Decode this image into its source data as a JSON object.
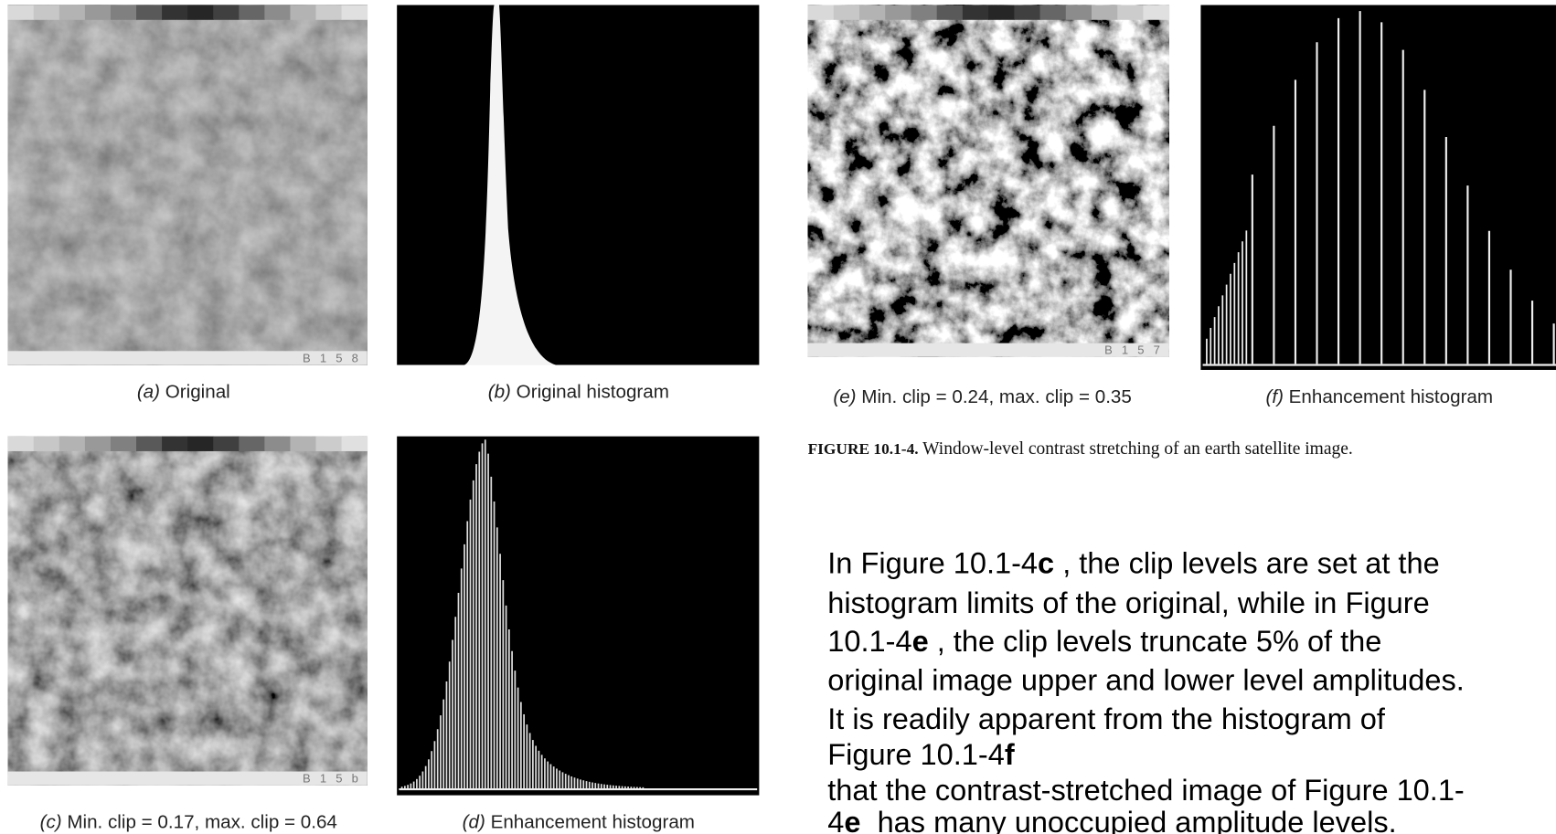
{
  "panels": [
    {
      "label": "(a)",
      "caption": "Original",
      "image_text": "B 1 5 8"
    },
    {
      "label": "(b)",
      "caption": "Original histogram"
    },
    {
      "label": "(c)",
      "caption": "Min. clip = 0.17, max. clip = 0.64",
      "image_text": "B 1 5 b"
    },
    {
      "label": "(d)",
      "caption": "Enhancement histogram"
    },
    {
      "label": "(e)",
      "caption": "Min. clip = 0.24, max. clip = 0.35",
      "image_text": "B 1 5 7"
    },
    {
      "label": "(f)",
      "caption": "Enhancement histogram"
    }
  ],
  "figure_caption": {
    "number": "FIGURE 10.1-4.",
    "text": " Window-level contrast stretching of an earth satellite image."
  },
  "paragraph": [
    [
      "In Figure 10.1-4",
      {
        "bold": "c"
      },
      " , the clip levels are set at the"
    ],
    [
      "histogram limits of the original, while in Figure"
    ],
    [
      "10.1-4",
      {
        "bold": "e"
      },
      " , the clip levels truncate 5% of the"
    ],
    [
      "original image upper and lower level amplitudes."
    ],
    [
      "It is readily apparent from the histogram of"
    ],
    [
      "Figure 10.1-4",
      {
        "bold": "f"
      }
    ],
    [
      "that the contrast-stretched image of Figure 10.1-"
    ],
    [
      "4",
      {
        "bold": "e"
      },
      "  has many unoccupied amplitude levels."
    ]
  ]
}
